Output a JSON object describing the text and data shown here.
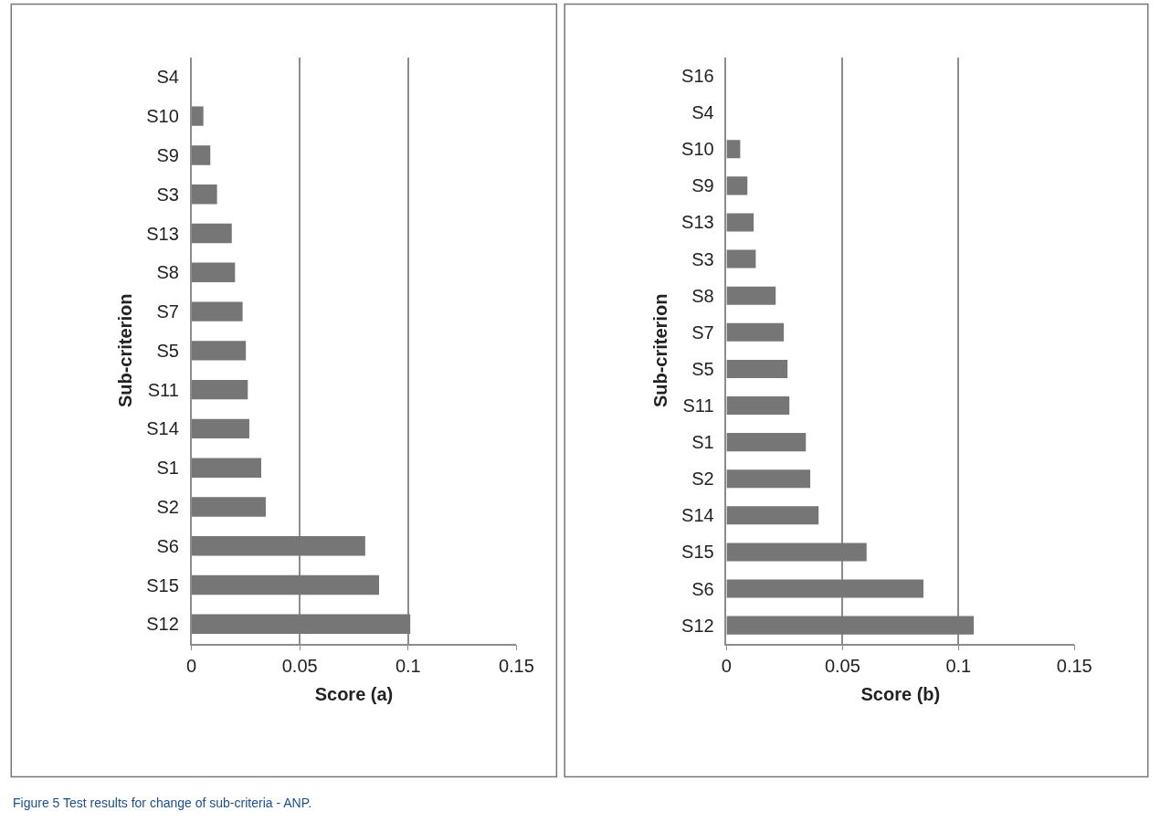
{
  "chart_data": [
    {
      "type": "bar",
      "orientation": "horizontal",
      "xlabel": "Score (a)",
      "ylabel": "Sub-criterion",
      "color": "#767676",
      "categories": [
        "S4",
        "S10",
        "S9",
        "S3",
        "S13",
        "S8",
        "S7",
        "S5",
        "S11",
        "S14",
        "S1",
        "S2",
        "S6",
        "S15",
        "S12"
      ],
      "values": [
        0,
        0.0055,
        0.0087,
        0.0118,
        0.0186,
        0.0201,
        0.0236,
        0.0251,
        0.026,
        0.0267,
        0.0322,
        0.0343,
        0.0802,
        0.0866,
        0.101
      ],
      "xlim": [
        0,
        0.15
      ],
      "xticks": [
        0,
        0.05,
        0.1,
        0.15
      ],
      "grid": "x",
      "annotations": [
        "Figure 5 Test results for change of sub-criteria - ANP."
      ]
    },
    {
      "type": "bar",
      "orientation": "horizontal",
      "xlabel": "Score (b)",
      "ylabel": "Sub-criterion",
      "color": "#767676",
      "categories": [
        "S16",
        "S4",
        "S10",
        "S9",
        "S13",
        "S3",
        "S8",
        "S7",
        "S5",
        "S11",
        "S1",
        "S2",
        "S14",
        "S15",
        "S6",
        "S12"
      ],
      "values": [
        0,
        0,
        0.0059,
        0.009,
        0.0117,
        0.0126,
        0.0212,
        0.0247,
        0.0263,
        0.0271,
        0.0342,
        0.0361,
        0.0397,
        0.0604,
        0.0849,
        0.1066
      ],
      "xlim": [
        0,
        0.15
      ],
      "xticks": [
        0,
        0.05,
        0.1,
        0.15
      ],
      "grid": "x"
    }
  ]
}
